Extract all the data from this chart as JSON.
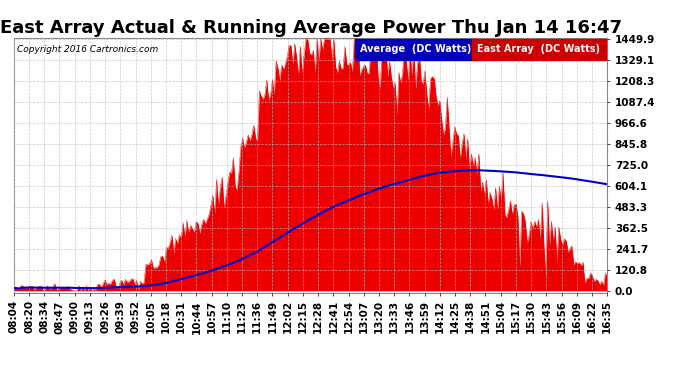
{
  "title": "East Array Actual & Running Average Power Thu Jan 14 16:47",
  "copyright": "Copyright 2016 Cartronics.com",
  "legend_labels": [
    "Average  (DC Watts)",
    "East Array  (DC Watts)"
  ],
  "legend_bg_colors": [
    "#0000bb",
    "#cc0000"
  ],
  "legend_text_colors": [
    "#ffffff",
    "#ffffff"
  ],
  "yticks": [
    0.0,
    120.8,
    241.7,
    362.5,
    483.3,
    604.1,
    725.0,
    845.8,
    966.6,
    1087.4,
    1208.3,
    1329.1,
    1449.9
  ],
  "ymax": 1449.9,
  "xtick_labels": [
    "08:04",
    "08:20",
    "08:34",
    "08:47",
    "09:00",
    "09:13",
    "09:26",
    "09:39",
    "09:52",
    "10:05",
    "10:18",
    "10:31",
    "10:44",
    "10:57",
    "11:10",
    "11:23",
    "11:36",
    "11:49",
    "12:02",
    "12:15",
    "12:28",
    "12:41",
    "12:54",
    "13:07",
    "13:20",
    "13:33",
    "13:46",
    "13:59",
    "14:12",
    "14:25",
    "14:38",
    "14:51",
    "15:04",
    "15:17",
    "15:30",
    "15:43",
    "15:56",
    "16:09",
    "16:22",
    "16:35"
  ],
  "bg_color": "#ffffff",
  "plot_bg_color": "#ffffff",
  "grid_color": "#bbbbbb",
  "bar_color": "#ee0000",
  "line_color": "#0000cc",
  "title_fontsize": 13,
  "axis_fontsize": 7.5
}
